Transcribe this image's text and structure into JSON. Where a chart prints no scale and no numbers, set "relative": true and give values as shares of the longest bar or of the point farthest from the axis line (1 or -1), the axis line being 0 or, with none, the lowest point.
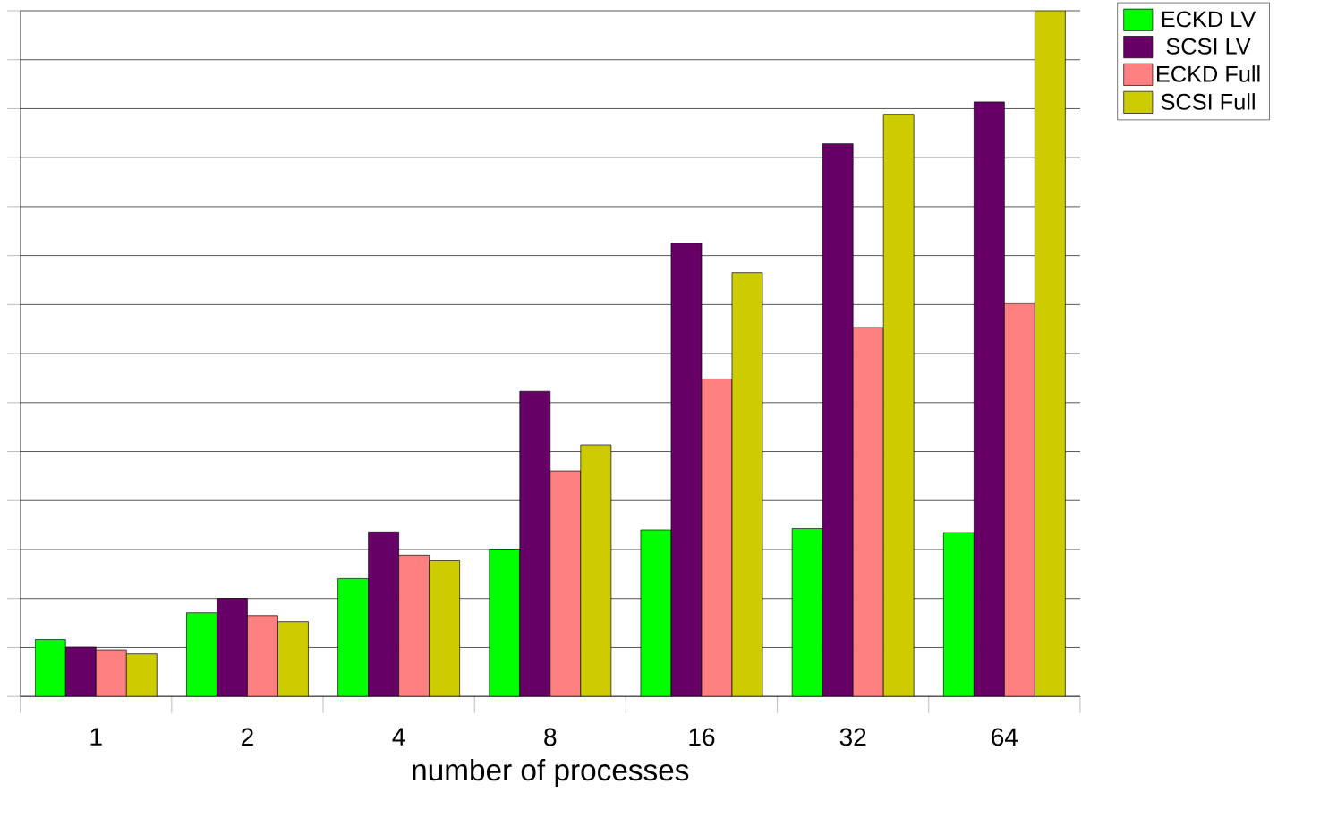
{
  "chart_data": {
    "type": "bar",
    "relative": true,
    "xlabel": "number of processes",
    "grid": "y",
    "legend": "top right",
    "categories": [
      "1",
      "2",
      "4",
      "8",
      "16",
      "32",
      "64"
    ],
    "series": [
      {
        "name": "ECKD LV",
        "color": "#00ff00",
        "values": [
          0.083,
          0.122,
          0.172,
          0.215,
          0.243,
          0.245,
          0.239
        ]
      },
      {
        "name": "SCSI LV",
        "color": "#660066",
        "values": [
          0.072,
          0.143,
          0.24,
          0.445,
          0.661,
          0.806,
          0.867
        ]
      },
      {
        "name": "ECKD Full",
        "color": "#ff8080",
        "values": [
          0.068,
          0.118,
          0.206,
          0.329,
          0.463,
          0.538,
          0.573
        ]
      },
      {
        "name": "SCSI Full",
        "color": "#cccc00",
        "values": [
          0.062,
          0.109,
          0.198,
          0.367,
          0.618,
          0.849,
          1.0
        ]
      }
    ]
  }
}
